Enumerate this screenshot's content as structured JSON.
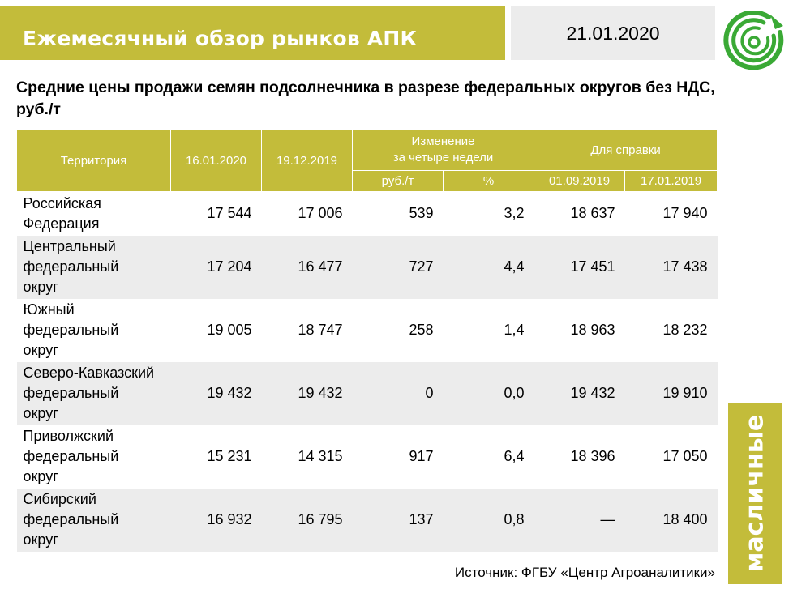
{
  "header": {
    "title": "Ежемесячный обзор рынков АПК",
    "date": "21.01.2020"
  },
  "subtitle": "Средние цены продажи семян подсолнечника в разрезе федеральных округов без НДС, руб./т",
  "table": {
    "headers": {
      "territory": "Территория",
      "col_current": "16.01.2020",
      "col_prev": "19.12.2019",
      "change_group": "Изменение\nза четыре недели",
      "change_rub": "руб./т",
      "change_pct": "%",
      "reference_group": "Для справки",
      "ref_1": "01.09.2019",
      "ref_2": "17.01.2019"
    },
    "rows": [
      {
        "territory": "Российская\nФедерация",
        "current": "17 544",
        "prev": "17 006",
        "change_rub": "539",
        "change_pct": "3,2",
        "ref_1": "18 637",
        "ref_2": "17 940"
      },
      {
        "territory": "Центральный\nфедеральный\nокруг",
        "current": "17 204",
        "prev": "16 477",
        "change_rub": "727",
        "change_pct": "4,4",
        "ref_1": "17 451",
        "ref_2": "17 438"
      },
      {
        "territory": "Южный\nфедеральный\nокруг",
        "current": "19 005",
        "prev": "18 747",
        "change_rub": "258",
        "change_pct": "1,4",
        "ref_1": "18 963",
        "ref_2": "18 232"
      },
      {
        "territory": "Северо-Кавказский\nфедеральный\nокруг",
        "current": "19 432",
        "prev": "19 432",
        "change_rub": "0",
        "change_pct": "0,0",
        "ref_1": "19 432",
        "ref_2": "19 910"
      },
      {
        "territory": "Приволжский\nфедеральный\nокруг",
        "current": "15 231",
        "prev": "14 315",
        "change_rub": "917",
        "change_pct": "6,4",
        "ref_1": "18 396",
        "ref_2": "17 050"
      },
      {
        "territory": "Сибирский\nфедеральный\nокруг",
        "current": "16 932",
        "prev": "16 795",
        "change_rub": "137",
        "change_pct": "0,8",
        "ref_1": "—",
        "ref_2": "18 400"
      }
    ]
  },
  "side_label": "масличные",
  "source": "Источник: ФГБУ «Центр Агроаналитики»",
  "colors": {
    "accent": "#c3bc3a",
    "light_gray": "#ececec",
    "logo_green": "#3aa935"
  },
  "icons": {
    "logo": "concentric-circles-logo-icon"
  }
}
